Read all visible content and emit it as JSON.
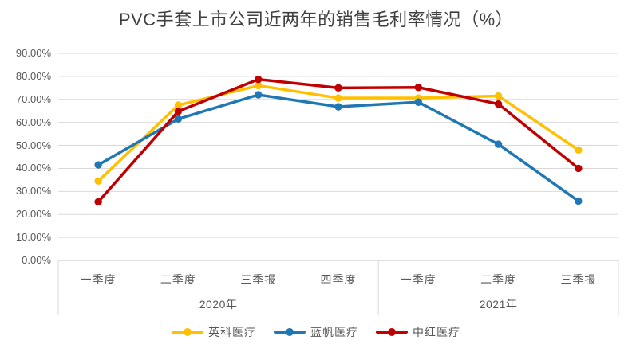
{
  "chart_data": {
    "type": "line",
    "title": "PVC手套上市公司近两年的销售毛利率情况（%）",
    "categories": [
      "一季度",
      "二季度",
      "三季报",
      "四季度",
      "一季度",
      "二季度",
      "三季报"
    ],
    "category_groups": [
      {
        "label": "2020年",
        "from": 0,
        "to": 3
      },
      {
        "label": "2021年",
        "from": 4,
        "to": 6
      }
    ],
    "series": [
      {
        "name": "英科医疗",
        "color": "#FFC000",
        "values": [
          34.5,
          67.5,
          76.0,
          70.6,
          70.6,
          71.5,
          48.0
        ]
      },
      {
        "name": "蓝帆医疗",
        "color": "#1F77B4",
        "values": [
          41.5,
          61.5,
          72.0,
          66.8,
          68.8,
          50.5,
          25.8
        ]
      },
      {
        "name": "中红医疗",
        "color": "#C00000",
        "values": [
          25.5,
          64.8,
          78.7,
          75.0,
          75.2,
          68.0,
          40.0
        ]
      }
    ],
    "ylim": [
      0,
      90
    ],
    "ytick_step": 10,
    "ytick_labels": [
      "0.00%",
      "10.00%",
      "20.00%",
      "30.00%",
      "40.00%",
      "50.00%",
      "60.00%",
      "70.00%",
      "80.00%",
      "90.00%"
    ],
    "grid": true,
    "legend_position": "bottom",
    "colors": {
      "grid_line": "#D9D9D9",
      "axis_line": "#BFBFBF",
      "tick_text": "#595959",
      "title_text": "#404040",
      "background": "#FFFFFF"
    }
  }
}
